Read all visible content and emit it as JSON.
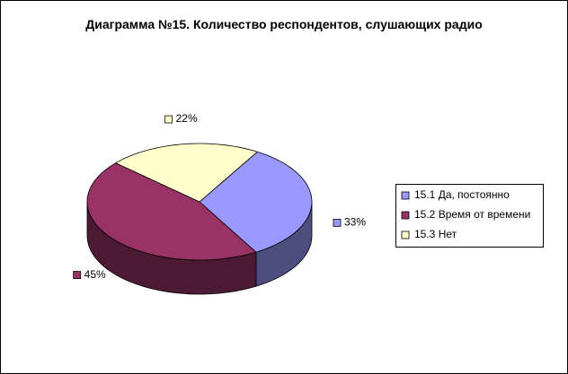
{
  "chart_data": {
    "type": "pie",
    "title": "Диаграмма №15. Количество респондентов, слушающих радио",
    "categories": [
      "15.1 Да, постоянно",
      "15.2 Время от времени",
      "15.3 Нет"
    ],
    "values": [
      33,
      45,
      22
    ],
    "value_labels": [
      "33%",
      "45%",
      "22%"
    ],
    "colors": [
      "#9999ff",
      "#993366",
      "#ffffcc"
    ],
    "legend": "right"
  }
}
